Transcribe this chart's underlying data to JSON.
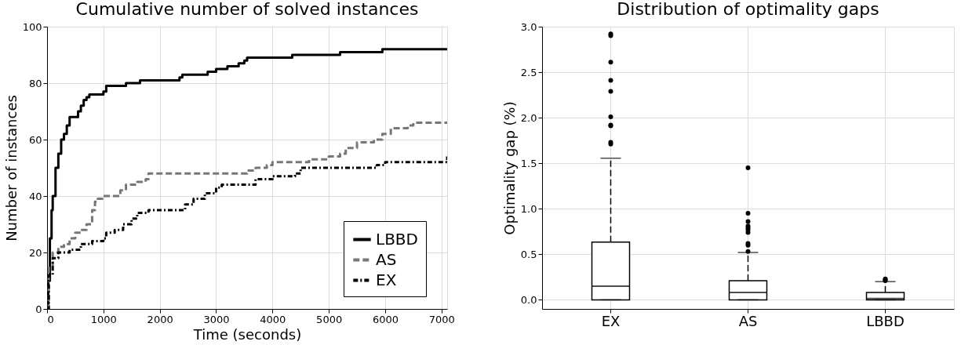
{
  "chart_data": [
    {
      "type": "step",
      "title": "Cumulative number of solved instances",
      "xlabel": "Time (seconds)",
      "ylabel": "Number of instances",
      "xlim": [
        0,
        7100
      ],
      "xticks": [
        0,
        1000,
        2000,
        3000,
        4000,
        5000,
        6000,
        7000
      ],
      "ylim": [
        0,
        100
      ],
      "yticks": [
        0,
        20,
        40,
        60,
        80,
        100
      ],
      "grid": true,
      "legend": "bottom right",
      "series": [
        {
          "name": "LBBD",
          "color": "#000000",
          "line_style": "solid",
          "x": [
            0,
            20,
            50,
            80,
            100,
            150,
            200,
            250,
            300,
            350,
            400,
            500,
            550,
            600,
            650,
            700,
            750,
            900,
            1000,
            1050,
            1350,
            1400,
            1600,
            1650,
            2300,
            2350,
            2400,
            2800,
            2850,
            3000,
            3200,
            3400,
            3500,
            3550,
            4300,
            4350,
            5150,
            5200,
            5900,
            5950,
            7100
          ],
          "values": [
            0,
            10,
            25,
            35,
            40,
            50,
            55,
            60,
            62,
            65,
            68,
            68,
            70,
            72,
            74,
            75,
            76,
            76,
            77,
            79,
            79,
            80,
            80,
            81,
            81,
            82,
            83,
            83,
            84,
            85,
            86,
            87,
            88,
            89,
            89,
            90,
            90,
            91,
            91,
            92,
            92
          ]
        },
        {
          "name": "AS",
          "color": "#777777",
          "line_style": "dashed",
          "x": [
            0,
            30,
            100,
            200,
            300,
            400,
            500,
            600,
            700,
            800,
            850,
            900,
            1000,
            1250,
            1300,
            1400,
            1600,
            1750,
            1800,
            3500,
            3550,
            3700,
            3900,
            4000,
            4600,
            4650,
            5000,
            5200,
            5300,
            5500,
            5800,
            5950,
            6100,
            6400,
            6500,
            7100
          ],
          "values": [
            0,
            15,
            20,
            22,
            23,
            25,
            27,
            28,
            30,
            35,
            38,
            39,
            40,
            40,
            42,
            44,
            45,
            46,
            48,
            48,
            49,
            50,
            51,
            52,
            52,
            53,
            54,
            55,
            57,
            59,
            60,
            62,
            64,
            65,
            66,
            66
          ]
        },
        {
          "name": "EX",
          "color": "#000000",
          "line_style": "dotted",
          "x": [
            0,
            30,
            100,
            200,
            400,
            600,
            800,
            1000,
            1050,
            1200,
            1350,
            1500,
            1600,
            1800,
            2400,
            2450,
            2600,
            2800,
            3000,
            3100,
            3600,
            3700,
            4000,
            4400,
            4500,
            5800,
            5850,
            6000,
            7050,
            7100
          ],
          "values": [
            0,
            12,
            18,
            20,
            21,
            23,
            24,
            25,
            27,
            28,
            30,
            32,
            34,
            35,
            35,
            37,
            39,
            41,
            43,
            44,
            44,
            46,
            47,
            48,
            50,
            50,
            51,
            52,
            52,
            54
          ]
        }
      ]
    },
    {
      "type": "box",
      "title": "Distribution of optimality gaps",
      "ylabel": "Optimality gap (%)",
      "categories": [
        "EX",
        "AS",
        "LBBD"
      ],
      "ylim": [
        -0.1,
        3.0
      ],
      "yticks": [
        {
          "value": 0,
          "label": "0.0"
        },
        0.5,
        {
          "value": 1,
          "label": "1.0"
        },
        1.5,
        {
          "value": 2,
          "label": "2.0"
        },
        2.5,
        {
          "value": 3,
          "label": "3.0"
        }
      ],
      "grid": true,
      "line_style": "dashed",
      "boxes": [
        {
          "low": 0,
          "q1": 0,
          "median": 0.15,
          "q3": 0.635,
          "high": 1.555,
          "outliers": [
            1.71,
            1.73,
            1.91,
            1.92,
            2.01,
            2.29,
            2.41,
            2.61,
            2.9,
            2.92
          ]
        },
        {
          "low": 0,
          "q1": 0,
          "median": 0.08,
          "q3": 0.21,
          "high": 0.52,
          "outliers": [
            0.53,
            0.6,
            0.62,
            0.74,
            0.77,
            0.79,
            0.81,
            0.86,
            0.95,
            1.45
          ]
        },
        {
          "low": 0,
          "q1": 0,
          "median": 0.015,
          "q3": 0.08,
          "high": 0.2,
          "outliers": [
            0.21,
            0.22,
            0.23
          ]
        }
      ]
    }
  ]
}
